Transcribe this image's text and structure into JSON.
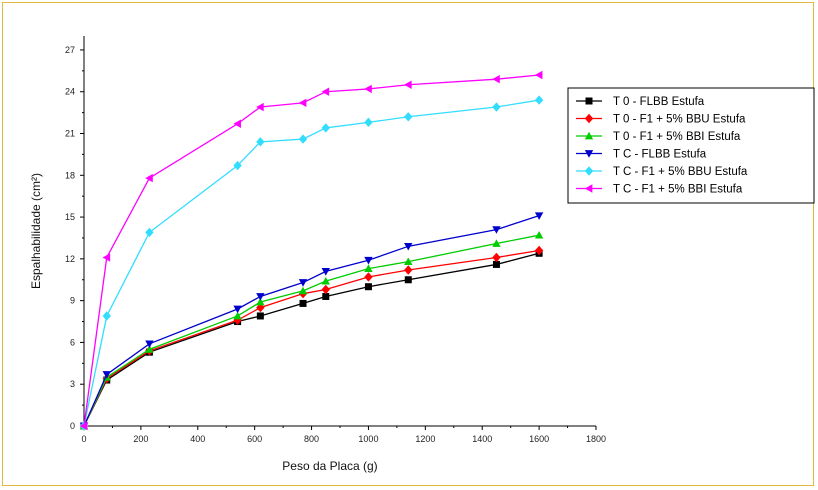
{
  "chart_data": {
    "type": "line",
    "xlabel": "Peso da Placa (g)",
    "ylabel": "Espalhabilidade (cm²)",
    "xlim": [
      0,
      1800
    ],
    "ylim": [
      0,
      28
    ],
    "xticks": [
      0,
      200,
      400,
      600,
      800,
      1000,
      1200,
      1400,
      1600,
      1800
    ],
    "yticks": [
      0,
      3,
      6,
      9,
      12,
      15,
      18,
      21,
      24,
      27
    ],
    "legend_position": "right",
    "x": [
      0,
      80,
      230,
      540,
      620,
      770,
      850,
      1000,
      1140,
      1450,
      1600
    ],
    "series": [
      {
        "name": "T 0 - FLBB Estufa",
        "color": "#000000",
        "marker": "square",
        "values": [
          0,
          3.3,
          5.3,
          7.5,
          7.9,
          8.8,
          9.3,
          10.0,
          10.5,
          11.6,
          12.4
        ]
      },
      {
        "name": "T 0 - F1 + 5% BBU Estufa",
        "color": "#ff0000",
        "marker": "diamond",
        "values": [
          0,
          3.4,
          5.4,
          7.6,
          8.5,
          9.5,
          9.8,
          10.7,
          11.2,
          12.1,
          12.6
        ]
      },
      {
        "name": "T 0 - F1 + 5% BBI Estufa",
        "color": "#00cc00",
        "marker": "triangle-up",
        "values": [
          0,
          3.5,
          5.5,
          7.9,
          8.9,
          9.7,
          10.4,
          11.3,
          11.8,
          13.1,
          13.7
        ]
      },
      {
        "name": "T C - FLBB Estufa",
        "color": "#0000cc",
        "marker": "triangle-down",
        "values": [
          0,
          3.7,
          5.9,
          8.4,
          9.3,
          10.3,
          11.1,
          11.9,
          12.9,
          14.1,
          15.1
        ]
      },
      {
        "name": "T C - F1 + 5% BBU Estufa",
        "color": "#33ddff",
        "marker": "diamond",
        "values": [
          0,
          7.9,
          13.9,
          18.7,
          20.4,
          20.6,
          21.4,
          21.8,
          22.2,
          22.9,
          23.4
        ]
      },
      {
        "name": "T C - F1 + 5% BBI Estufa",
        "color": "#ff00ff",
        "marker": "triangle-left",
        "values": [
          0,
          12.1,
          17.8,
          21.7,
          22.9,
          23.2,
          24.0,
          24.2,
          24.5,
          24.9,
          25.2
        ]
      }
    ]
  }
}
